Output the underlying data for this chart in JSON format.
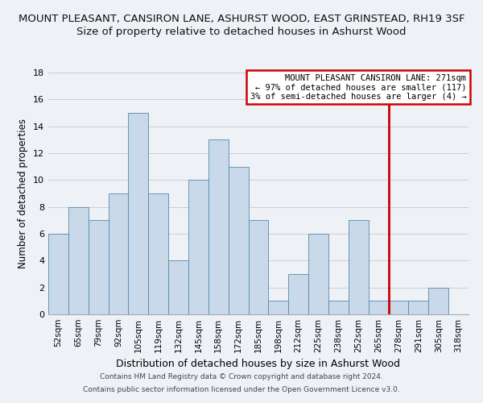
{
  "title": "MOUNT PLEASANT, CANSIRON LANE, ASHURST WOOD, EAST GRINSTEAD, RH19 3SF",
  "subtitle": "Size of property relative to detached houses in Ashurst Wood",
  "xlabel": "Distribution of detached houses by size in Ashurst Wood",
  "ylabel": "Number of detached properties",
  "bar_labels": [
    "52sqm",
    "65sqm",
    "79sqm",
    "92sqm",
    "105sqm",
    "119sqm",
    "132sqm",
    "145sqm",
    "158sqm",
    "172sqm",
    "185sqm",
    "198sqm",
    "212sqm",
    "225sqm",
    "238sqm",
    "252sqm",
    "265sqm",
    "278sqm",
    "291sqm",
    "305sqm",
    "318sqm"
  ],
  "bar_values": [
    6,
    8,
    7,
    9,
    15,
    9,
    4,
    10,
    13,
    11,
    7,
    1,
    3,
    6,
    1,
    7,
    1,
    1,
    1,
    2,
    0
  ],
  "bar_color": "#c9d9ea",
  "bar_edge_color": "#5588aa",
  "grid_color": "#c8c8c8",
  "background_color": "#eef2f7",
  "vline_x": 16.5,
  "vline_color": "#cc0000",
  "legend_title": "MOUNT PLEASANT CANSIRON LANE: 271sqm",
  "legend_line1": "← 97% of detached houses are smaller (117)",
  "legend_line2": "3% of semi-detached houses are larger (4) →",
  "legend_box_color": "#cc0000",
  "ylim": [
    0,
    18
  ],
  "yticks": [
    0,
    2,
    4,
    6,
    8,
    10,
    12,
    14,
    16,
    18
  ],
  "footnote1": "Contains HM Land Registry data © Crown copyright and database right 2024.",
  "footnote2": "Contains public sector information licensed under the Open Government Licence v3.0.",
  "title_fontsize": 9.5,
  "subtitle_fontsize": 9.5,
  "xlabel_fontsize": 9,
  "ylabel_fontsize": 8.5,
  "tick_fontsize": 7.5,
  "footnote_fontsize": 6.5
}
